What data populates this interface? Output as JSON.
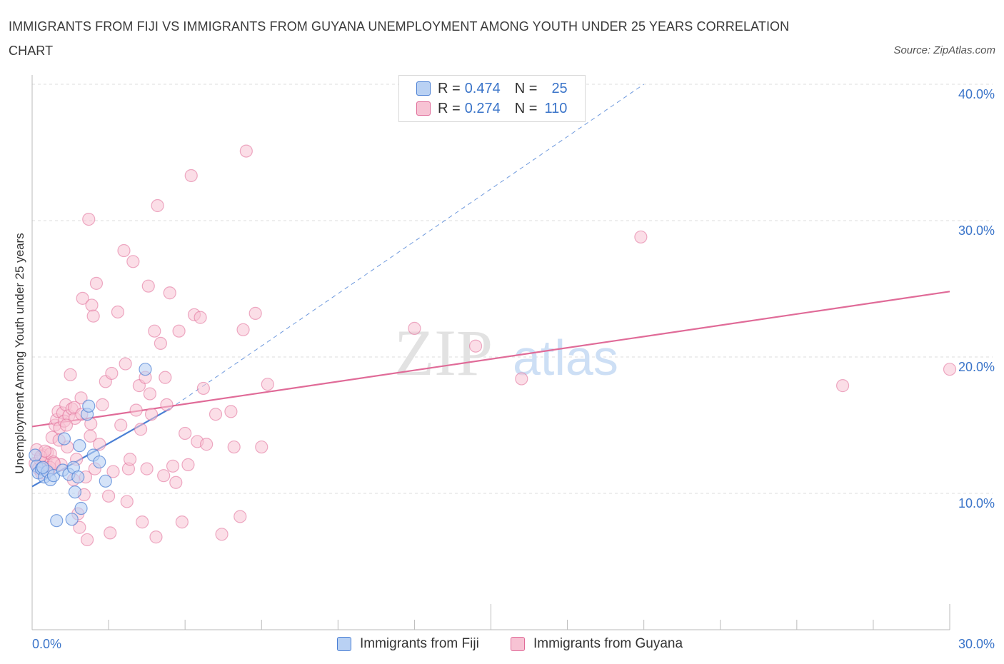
{
  "title": "IMMIGRANTS FROM FIJI VS IMMIGRANTS FROM GUYANA UNEMPLOYMENT AMONG YOUTH UNDER 25 YEARS CORRELATION CHART",
  "source": "Source: ZipAtlas.com",
  "watermark": {
    "zip": "ZIP",
    "atlas": "atlas"
  },
  "colors": {
    "fiji": "#4a7fd4",
    "fiji_fill": "#b9d1f3",
    "guyana": "#e06b98",
    "guyana_fill": "#f7c3d4",
    "axis_text": "#3a74c9",
    "grid": "#dddddd"
  },
  "legend": {
    "fiji": {
      "r_label": "R =",
      "r": "0.474",
      "n_label": "N =",
      "n": "25"
    },
    "guyana": {
      "r_label": "R =",
      "r": "0.274",
      "n_label": "N =",
      "n": "110"
    }
  },
  "bottom_legend": {
    "fiji": "Immigrants from Fiji",
    "guyana": "Immigrants from Guyana"
  },
  "chart_data": {
    "type": "scatter",
    "title": "IMMIGRANTS FROM FIJI VS IMMIGRANTS FROM GUYANA UNEMPLOYMENT AMONG YOUTH UNDER 25 YEARS CORRELATION CHART",
    "xlabel": "",
    "ylabel": "Unemployment Among Youth under 25 years",
    "xlim": [
      0,
      30
    ],
    "ylim": [
      0,
      40
    ],
    "x_tick_labels": [
      "0.0%",
      "30.0%"
    ],
    "y_ticks": [
      10,
      20,
      30,
      40
    ],
    "y_tick_labels": [
      "10.0%",
      "20.0%",
      "30.0%",
      "40.0%"
    ],
    "series": [
      {
        "name": "Immigrants from Fiji",
        "points": [
          [
            0.1,
            12.8
          ],
          [
            0.15,
            12.0
          ],
          [
            0.2,
            11.5
          ],
          [
            0.3,
            11.8
          ],
          [
            0.4,
            11.2
          ],
          [
            0.5,
            11.6
          ],
          [
            0.6,
            11.0
          ],
          [
            0.7,
            11.3
          ],
          [
            0.8,
            8.0
          ],
          [
            1.0,
            11.7
          ],
          [
            1.05,
            14.0
          ],
          [
            1.2,
            11.4
          ],
          [
            1.3,
            8.1
          ],
          [
            1.35,
            11.9
          ],
          [
            1.4,
            10.1
          ],
          [
            1.5,
            11.2
          ],
          [
            1.55,
            13.5
          ],
          [
            1.6,
            8.9
          ],
          [
            1.8,
            15.8
          ],
          [
            1.85,
            16.4
          ],
          [
            2.0,
            12.8
          ],
          [
            2.2,
            12.3
          ],
          [
            2.4,
            10.9
          ],
          [
            3.7,
            19.1
          ],
          [
            0.35,
            11.9
          ]
        ],
        "trend": {
          "x": [
            0,
            4.5
          ],
          "y": [
            10.5,
            16.2
          ],
          "extended_to": [
            20,
            40
          ]
        }
      },
      {
        "name": "Immigrants from Guyana",
        "points": [
          [
            0.1,
            12.2
          ],
          [
            0.2,
            11.8
          ],
          [
            0.25,
            12.5
          ],
          [
            0.3,
            11.5
          ],
          [
            0.35,
            12.8
          ],
          [
            0.4,
            11.9
          ],
          [
            0.45,
            12.4
          ],
          [
            0.5,
            13.0
          ],
          [
            0.55,
            11.7
          ],
          [
            0.6,
            12.9
          ],
          [
            0.65,
            14.1
          ],
          [
            0.7,
            12.3
          ],
          [
            0.75,
            15.0
          ],
          [
            0.8,
            15.4
          ],
          [
            0.85,
            16.0
          ],
          [
            0.9,
            14.8
          ],
          [
            0.95,
            12.1
          ],
          [
            1.0,
            15.9
          ],
          [
            1.05,
            15.3
          ],
          [
            1.1,
            16.5
          ],
          [
            1.15,
            13.4
          ],
          [
            1.2,
            15.7
          ],
          [
            1.25,
            18.7
          ],
          [
            1.3,
            16.2
          ],
          [
            1.35,
            11.0
          ],
          [
            1.4,
            15.5
          ],
          [
            1.45,
            12.5
          ],
          [
            1.5,
            8.5
          ],
          [
            1.55,
            7.5
          ],
          [
            1.6,
            17.0
          ],
          [
            1.65,
            24.3
          ],
          [
            1.7,
            9.9
          ],
          [
            1.75,
            11.2
          ],
          [
            1.8,
            6.6
          ],
          [
            1.85,
            30.1
          ],
          [
            1.9,
            14.2
          ],
          [
            1.95,
            23.8
          ],
          [
            2.0,
            23.0
          ],
          [
            2.05,
            11.8
          ],
          [
            2.1,
            25.4
          ],
          [
            2.2,
            13.6
          ],
          [
            2.3,
            16.5
          ],
          [
            2.4,
            18.2
          ],
          [
            2.5,
            9.8
          ],
          [
            2.55,
            7.1
          ],
          [
            2.6,
            18.8
          ],
          [
            2.65,
            11.6
          ],
          [
            2.8,
            23.3
          ],
          [
            2.9,
            15.0
          ],
          [
            3.0,
            27.8
          ],
          [
            3.05,
            19.5
          ],
          [
            3.1,
            9.4
          ],
          [
            3.15,
            11.8
          ],
          [
            3.2,
            12.5
          ],
          [
            3.3,
            27.0
          ],
          [
            3.4,
            16.1
          ],
          [
            3.5,
            17.9
          ],
          [
            3.55,
            14.7
          ],
          [
            3.6,
            7.9
          ],
          [
            3.7,
            18.5
          ],
          [
            3.75,
            11.8
          ],
          [
            3.8,
            25.2
          ],
          [
            3.85,
            17.3
          ],
          [
            3.9,
            15.8
          ],
          [
            4.0,
            21.9
          ],
          [
            4.05,
            6.8
          ],
          [
            4.1,
            31.1
          ],
          [
            4.2,
            21.0
          ],
          [
            4.3,
            11.3
          ],
          [
            4.35,
            18.5
          ],
          [
            4.4,
            16.5
          ],
          [
            4.5,
            24.7
          ],
          [
            4.6,
            12.0
          ],
          [
            4.7,
            10.8
          ],
          [
            4.8,
            21.9
          ],
          [
            4.9,
            7.9
          ],
          [
            5.0,
            14.4
          ],
          [
            5.1,
            12.1
          ],
          [
            5.2,
            33.3
          ],
          [
            5.3,
            23.1
          ],
          [
            5.4,
            13.8
          ],
          [
            5.5,
            22.9
          ],
          [
            5.6,
            17.7
          ],
          [
            5.7,
            13.6
          ],
          [
            6.0,
            15.8
          ],
          [
            6.2,
            7.0
          ],
          [
            6.5,
            16.0
          ],
          [
            6.6,
            13.4
          ],
          [
            6.8,
            8.3
          ],
          [
            6.9,
            22.0
          ],
          [
            7.0,
            35.1
          ],
          [
            7.3,
            23.2
          ],
          [
            7.5,
            13.4
          ],
          [
            7.7,
            18.0
          ],
          [
            12.5,
            22.1
          ],
          [
            14.5,
            20.8
          ],
          [
            16.0,
            18.4
          ],
          [
            19.9,
            28.8
          ],
          [
            26.5,
            17.9
          ],
          [
            30.0,
            19.1
          ],
          [
            0.15,
            13.2
          ],
          [
            0.28,
            12.7
          ],
          [
            0.42,
            13.1
          ],
          [
            0.58,
            11.9
          ],
          [
            0.72,
            12.2
          ],
          [
            0.88,
            13.9
          ],
          [
            1.12,
            15.0
          ],
          [
            1.38,
            16.3
          ],
          [
            1.62,
            15.8
          ],
          [
            1.92,
            15.1
          ]
        ],
        "trend": {
          "x": [
            0,
            30
          ],
          "y": [
            14.9,
            24.8
          ]
        }
      }
    ]
  }
}
